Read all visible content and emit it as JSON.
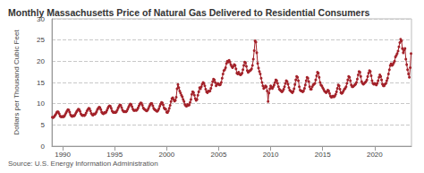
{
  "chart_data": {
    "type": "line",
    "title": "Monthly Massachusetts Price of Natural Gas Delivered to Residential Consumers",
    "y_label": "Dollars per Thousand Cubic Feet",
    "source": "Source: U.S. Energy Information Administration",
    "categories": [
      null,
      null,
      null,
      null,
      null,
      null,
      null,
      null,
      null,
      null,
      null,
      null,
      "1990",
      null,
      null,
      null,
      null,
      null,
      null,
      null,
      null,
      null,
      null,
      null,
      null,
      null,
      null,
      null,
      null,
      null,
      null,
      null,
      null,
      null,
      null,
      null,
      null,
      null,
      null,
      null,
      null,
      null,
      null,
      null,
      null,
      null,
      null,
      null,
      null,
      null,
      null,
      null,
      null,
      null,
      null,
      null,
      null,
      null,
      null,
      null,
      null,
      null,
      null,
      null,
      null,
      null,
      null,
      null,
      null,
      null,
      null,
      null,
      "1995",
      null,
      null,
      null,
      null,
      null,
      null,
      null,
      null,
      null,
      null,
      null,
      null,
      null,
      null,
      null,
      null,
      null,
      null,
      null,
      null,
      null,
      null,
      null,
      null,
      null,
      null,
      null,
      null,
      null,
      null,
      null,
      null,
      null,
      null,
      null,
      null,
      null,
      null,
      null,
      null,
      null,
      null,
      null,
      null,
      null,
      null,
      null,
      null,
      null,
      null,
      null,
      null,
      null,
      null,
      null,
      null,
      null,
      null,
      null,
      "2000",
      null,
      null,
      null,
      null,
      null,
      null,
      null,
      null,
      null,
      null,
      null,
      null,
      null,
      null,
      null,
      null,
      null,
      null,
      null,
      null,
      null,
      null,
      null,
      null,
      null,
      null,
      null,
      null,
      null,
      null,
      null,
      null,
      null,
      null,
      null,
      null,
      null,
      null,
      null,
      null,
      null,
      null,
      null,
      null,
      null,
      null,
      null,
      null,
      null,
      null,
      null,
      null,
      null,
      null,
      null,
      null,
      null,
      null,
      null,
      "2005",
      null,
      null,
      null,
      null,
      null,
      null,
      null,
      null,
      null,
      null,
      null,
      null,
      null,
      null,
      null,
      null,
      null,
      null,
      null,
      null,
      null,
      null,
      null,
      null,
      null,
      null,
      null,
      null,
      null,
      null,
      null,
      null,
      null,
      null,
      null,
      null,
      null,
      null,
      null,
      null,
      null,
      null,
      null,
      null,
      null,
      null,
      null,
      null,
      null,
      null,
      null,
      null,
      null,
      null,
      null,
      null,
      null,
      null,
      null,
      "2010",
      null,
      null,
      null,
      null,
      null,
      null,
      null,
      null,
      null,
      null,
      null,
      null,
      null,
      null,
      null,
      null,
      null,
      null,
      null,
      null,
      null,
      null,
      null,
      null,
      null,
      null,
      null,
      null,
      null,
      null,
      null,
      null,
      null,
      null,
      null,
      null,
      null,
      null,
      null,
      null,
      null,
      null,
      null,
      null,
      null,
      null,
      null,
      null,
      null,
      null,
      null,
      null,
      null,
      null,
      null,
      null,
      null,
      null,
      null,
      "2015",
      null,
      null,
      null,
      null,
      null,
      null,
      null,
      null,
      null,
      null,
      null,
      null,
      null,
      null,
      null,
      null,
      null,
      null,
      null,
      null,
      null,
      null,
      null,
      null,
      null,
      null,
      null,
      null,
      null,
      null,
      null,
      null,
      null,
      null,
      null,
      null,
      null,
      null,
      null,
      null,
      null,
      null,
      null,
      null,
      null,
      null,
      null,
      null,
      null,
      null,
      null,
      null,
      null,
      null,
      null,
      null,
      null,
      null,
      null,
      "2020",
      null,
      null,
      null,
      null,
      null,
      null,
      null,
      null,
      null,
      null,
      null,
      null,
      null,
      null,
      null,
      null,
      null,
      null,
      null,
      null,
      null,
      null,
      null,
      null,
      null,
      null,
      null,
      null,
      null,
      null,
      null,
      null,
      null,
      null,
      null,
      null,
      null,
      null,
      null,
      null,
      null,
      null
    ],
    "series": [
      {
        "color": "#a3222a",
        "marker": "circle",
        "values": [
          6.8,
          6.7,
          6.9,
          7.2,
          7.5,
          7.9,
          8.1,
          8.0,
          7.6,
          7.1,
          6.9,
          6.9,
          7.0,
          6.9,
          7.1,
          7.5,
          7.9,
          8.3,
          8.6,
          8.5,
          8.0,
          7.4,
          7.1,
          7.0,
          7.2,
          7.1,
          7.3,
          7.7,
          8.1,
          8.4,
          8.7,
          8.6,
          8.2,
          7.6,
          7.3,
          7.2,
          7.3,
          7.2,
          7.4,
          7.8,
          8.3,
          8.6,
          8.9,
          8.8,
          8.3,
          7.7,
          7.4,
          7.3,
          7.6,
          7.5,
          7.7,
          8.1,
          8.6,
          8.9,
          9.2,
          9.1,
          8.6,
          8.0,
          7.7,
          7.6,
          7.9,
          7.8,
          8.0,
          8.4,
          8.9,
          9.3,
          9.5,
          9.4,
          8.9,
          8.3,
          8.0,
          7.9,
          8.0,
          7.9,
          8.1,
          8.5,
          9.0,
          9.4,
          9.7,
          9.6,
          9.1,
          8.5,
          8.2,
          8.1,
          8.2,
          8.1,
          8.3,
          8.7,
          9.2,
          9.6,
          9.9,
          9.8,
          9.3,
          8.7,
          8.4,
          8.4,
          8.5,
          8.4,
          8.6,
          9.0,
          9.5,
          9.9,
          10.2,
          10.1,
          9.6,
          9.0,
          8.7,
          8.6,
          8.4,
          8.3,
          8.5,
          8.9,
          9.4,
          9.8,
          10.1,
          10.0,
          9.5,
          8.9,
          8.6,
          8.5,
          8.3,
          8.2,
          8.4,
          8.8,
          9.4,
          9.9,
          10.3,
          10.2,
          9.7,
          9.0,
          8.7,
          8.7,
          8.0,
          7.9,
          8.3,
          8.9,
          9.6,
          10.5,
          11.2,
          11.4,
          11.0,
          10.6,
          10.8,
          11.5,
          13.5,
          14.5,
          13.8,
          13.0,
          12.5,
          12.0,
          11.6,
          11.0,
          10.5,
          9.8,
          9.5,
          9.4,
          9.8,
          9.6,
          9.7,
          10.3,
          11.0,
          12.2,
          12.8,
          12.6,
          12.0,
          11.2,
          10.8,
          11.0,
          12.0,
          12.8,
          13.8,
          13.5,
          14.0,
          14.6,
          15.0,
          14.8,
          14.2,
          13.4,
          12.8,
          12.6,
          13.0,
          12.9,
          13.0,
          13.6,
          14.4,
          15.2,
          15.8,
          15.6,
          15.0,
          14.2,
          14.5,
          14.8,
          14.6,
          14.4,
          14.5,
          15.0,
          16.0,
          17.0,
          17.8,
          18.0,
          18.5,
          19.5,
          20.0,
          19.8,
          20.2,
          19.8,
          19.2,
          18.8,
          18.5,
          18.8,
          19.2,
          19.0,
          18.2,
          17.2,
          17.0,
          17.4,
          17.0,
          16.8,
          16.9,
          17.2,
          18.0,
          19.0,
          19.8,
          19.6,
          18.8,
          17.8,
          17.4,
          17.6,
          17.8,
          17.9,
          18.2,
          19.0,
          20.5,
          22.5,
          24.8,
          24.5,
          22.0,
          19.5,
          18.4,
          17.6,
          17.0,
          16.0,
          15.0,
          14.2,
          13.6,
          13.8,
          14.2,
          14.0,
          13.0,
          10.5,
          12.5,
          13.5,
          14.2,
          13.8,
          13.6,
          14.0,
          14.4,
          15.0,
          15.6,
          15.4,
          14.8,
          14.0,
          13.4,
          13.2,
          13.0,
          12.8,
          13.0,
          13.4,
          14.0,
          14.8,
          15.4,
          15.2,
          14.6,
          13.8,
          13.2,
          13.0,
          12.8,
          12.6,
          12.9,
          13.5,
          14.5,
          15.6,
          16.4,
          16.2,
          15.4,
          14.0,
          13.2,
          13.0,
          13.0,
          12.8,
          13.0,
          13.6,
          14.4,
          15.4,
          16.2,
          16.0,
          15.2,
          14.0,
          13.4,
          13.4,
          14.0,
          14.4,
          14.6,
          14.8,
          15.6,
          16.6,
          17.4,
          17.2,
          16.2,
          15.0,
          14.4,
          14.2,
          13.8,
          13.4,
          13.0,
          12.8,
          12.6,
          12.8,
          13.2,
          13.0,
          12.4,
          11.8,
          11.5,
          11.6,
          11.8,
          11.6,
          11.8,
          12.2,
          12.8,
          13.6,
          14.4,
          14.2,
          13.4,
          12.6,
          12.4,
          12.6,
          13.0,
          13.4,
          13.6,
          14.0,
          14.8,
          15.6,
          16.4,
          16.2,
          15.4,
          14.4,
          14.0,
          14.0,
          14.2,
          14.4,
          14.6,
          15.0,
          15.8,
          16.8,
          17.6,
          17.4,
          16.4,
          15.2,
          14.8,
          14.6,
          14.8,
          15.0,
          15.2,
          15.6,
          16.4,
          17.2,
          17.8,
          17.6,
          16.6,
          15.4,
          14.8,
          14.6,
          14.8,
          14.6,
          14.4,
          14.8,
          15.4,
          16.2,
          16.8,
          16.4,
          15.6,
          14.6,
          14.2,
          14.2,
          14.6,
          14.8,
          15.4,
          16.0,
          17.0,
          18.0,
          19.0,
          19.4,
          19.0,
          19.2,
          19.6,
          20.0,
          21.0,
          21.4,
          21.8,
          22.4,
          23.4,
          24.4,
          25.2,
          24.8,
          23.0,
          22.0,
          22.6,
          23.0,
          20.5,
          19.2,
          18.0,
          17.0,
          16.2,
          18.5,
          21.8
        ]
      }
    ],
    "ylim": [
      0,
      30
    ],
    "yticks": [
      0,
      5,
      10,
      15,
      20,
      25,
      30
    ],
    "grid": true
  }
}
